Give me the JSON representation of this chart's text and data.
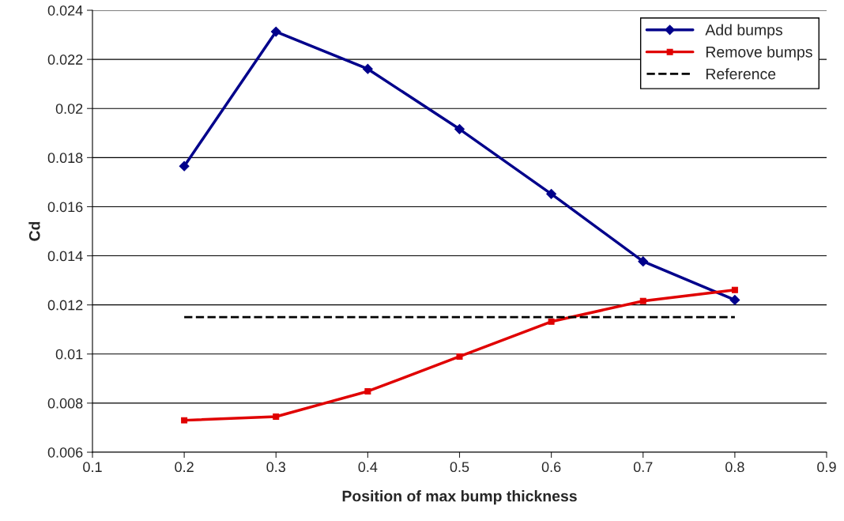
{
  "chart_data": {
    "type": "line",
    "xlabel": "Position of max bump thickness",
    "ylabel": "Cd",
    "xlim": [
      0.1,
      0.9
    ],
    "xticks": [
      0.1,
      0.2,
      0.3,
      0.4,
      0.5,
      0.6,
      0.7,
      0.8,
      0.9
    ],
    "ylim": [
      0.006,
      0.024
    ],
    "yticks": [
      0.006,
      0.008,
      0.01,
      0.012,
      0.014,
      0.016,
      0.018,
      0.02,
      0.022,
      0.024
    ],
    "grid": "y",
    "legend": "top right",
    "series": [
      {
        "name": "Add bumps",
        "color": "#00008b",
        "marker": "diamond",
        "line_style": "solid",
        "x": [
          0.2,
          0.3,
          0.4,
          0.5,
          0.6,
          0.7,
          0.8
        ],
        "values": [
          0.01765,
          0.02313,
          0.02161,
          0.01916,
          0.01652,
          0.01377,
          0.0122
        ]
      },
      {
        "name": "Remove bumps",
        "color": "#e00000",
        "marker": "square",
        "line_style": "solid",
        "x": [
          0.2,
          0.3,
          0.4,
          0.5,
          0.6,
          0.7,
          0.8
        ],
        "values": [
          0.0073,
          0.00745,
          0.00848,
          0.0099,
          0.01132,
          0.01216,
          0.01261
        ]
      },
      {
        "name": "Reference",
        "color": "#000000",
        "marker": "none",
        "line_style": "dashed",
        "x": [
          0.2,
          0.8
        ],
        "values": [
          0.0115,
          0.0115
        ]
      }
    ]
  }
}
